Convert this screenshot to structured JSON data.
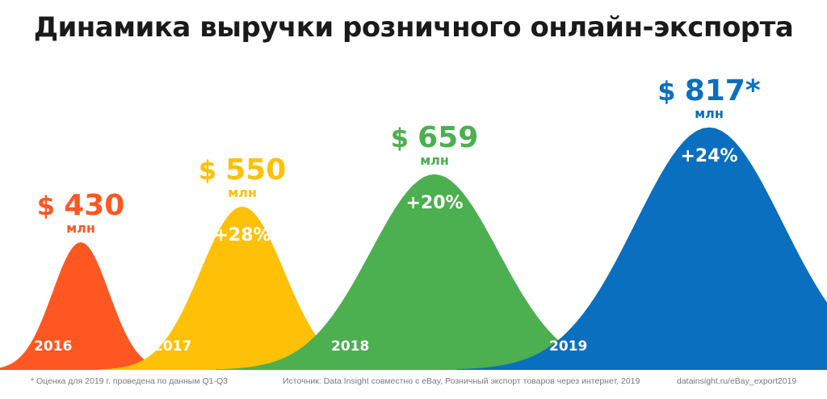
{
  "page_title": "Динамика выручки розничного онлайн-экспорта",
  "chart_data": {
    "type": "area",
    "title": "Динамика выручки розничного онлайн-экспорта",
    "currency_symbol": "$",
    "unit_label": "млн",
    "series": [
      {
        "year": "2016",
        "value": 430,
        "value_text": "430",
        "growth": "",
        "color": "#ff5722"
      },
      {
        "year": "2017",
        "value": 550,
        "value_text": "550",
        "growth": "+28%",
        "color": "#ffc107"
      },
      {
        "year": "2018",
        "value": 659,
        "value_text": "659",
        "growth": "+20%",
        "color": "#4caf50"
      },
      {
        "year": "2019",
        "value": 817,
        "value_text": "817*",
        "growth": "+24%",
        "color": "#0a6fbf"
      }
    ]
  },
  "footnotes": {
    "estimate": "* Оценка для 2019 г. проведена по данным  Q1-Q3",
    "source": "Источник: Data Insight  совместно с  eBay, Розничный экспорт товаров через интернет, 2019",
    "link": "datainsight.ru/eBay_export2019"
  }
}
